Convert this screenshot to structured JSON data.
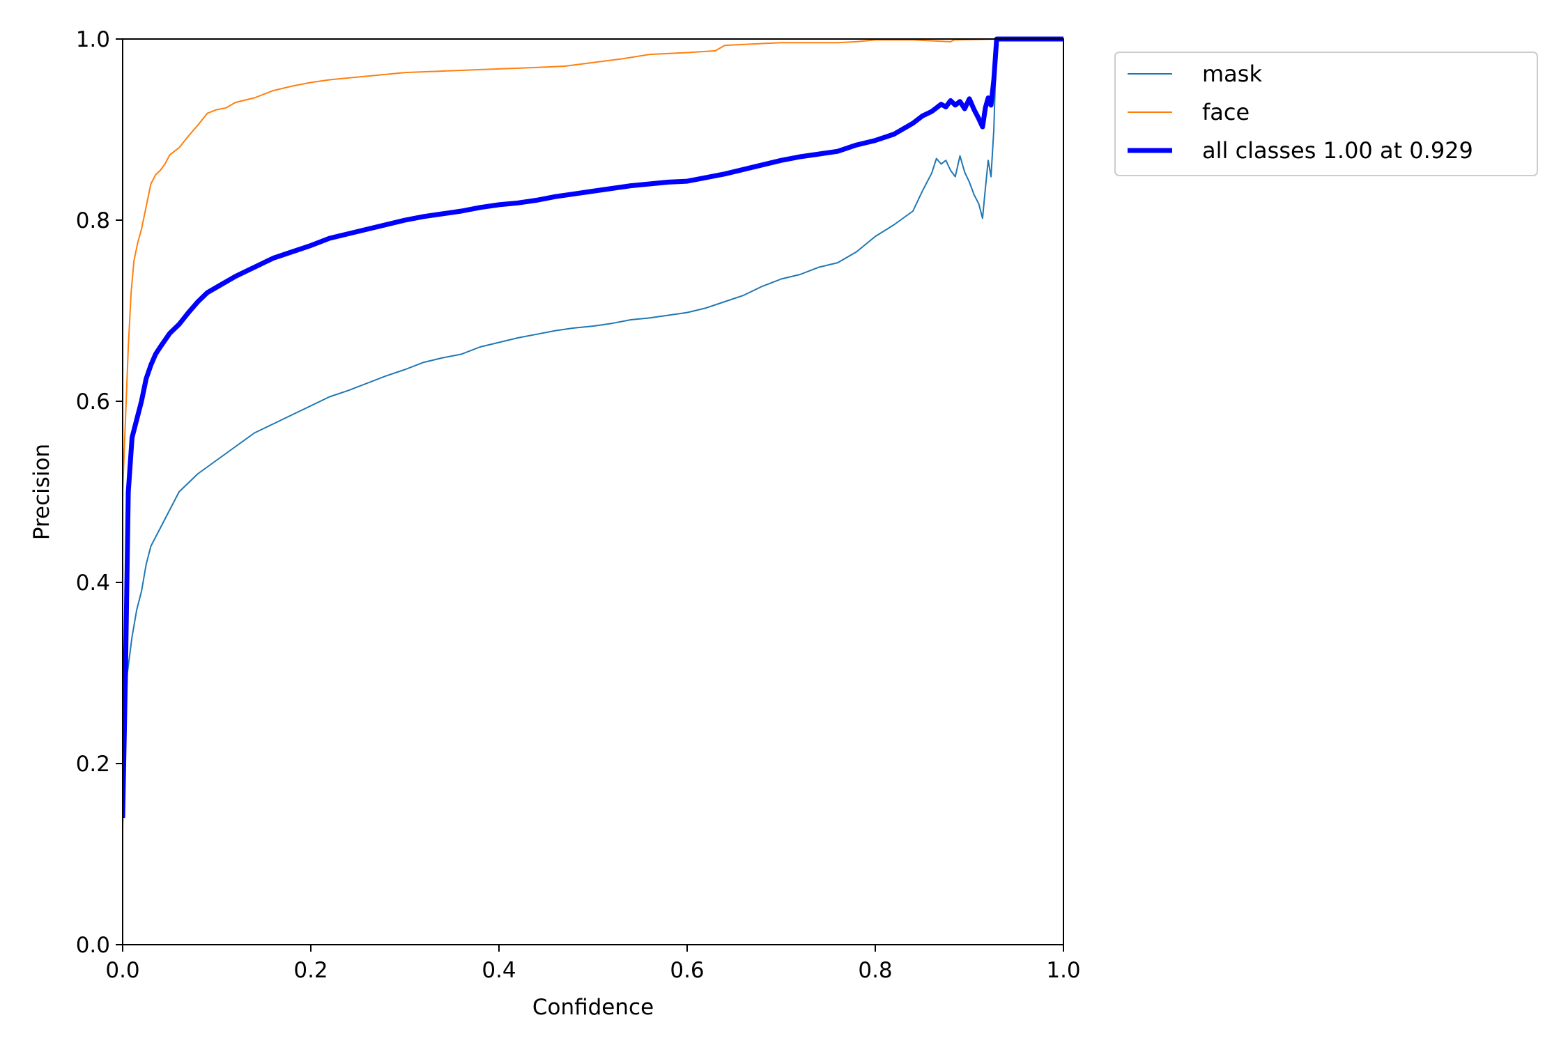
{
  "chart_data": {
    "type": "line",
    "title": "",
    "xlabel": "Confidence",
    "ylabel": "Precision",
    "xlim": [
      0.0,
      1.0
    ],
    "ylim": [
      0.0,
      1.0
    ],
    "xticks": [
      "0.0",
      "0.2",
      "0.4",
      "0.6",
      "0.8",
      "1.0"
    ],
    "yticks": [
      "0.0",
      "0.2",
      "0.4",
      "0.6",
      "0.8",
      "1.0"
    ],
    "grid": false,
    "legend_position": "outside-top-right",
    "series": [
      {
        "name": "mask",
        "color": "#1f77b4",
        "linewidth": 2,
        "points": [
          [
            0.0,
            0.13
          ],
          [
            0.003,
            0.25
          ],
          [
            0.005,
            0.3
          ],
          [
            0.01,
            0.34
          ],
          [
            0.015,
            0.37
          ],
          [
            0.02,
            0.39
          ],
          [
            0.025,
            0.42
          ],
          [
            0.03,
            0.44
          ],
          [
            0.04,
            0.46
          ],
          [
            0.05,
            0.48
          ],
          [
            0.06,
            0.5
          ],
          [
            0.07,
            0.51
          ],
          [
            0.08,
            0.52
          ],
          [
            0.1,
            0.535
          ],
          [
            0.12,
            0.55
          ],
          [
            0.14,
            0.565
          ],
          [
            0.16,
            0.575
          ],
          [
            0.18,
            0.585
          ],
          [
            0.2,
            0.595
          ],
          [
            0.22,
            0.605
          ],
          [
            0.24,
            0.612
          ],
          [
            0.26,
            0.62
          ],
          [
            0.28,
            0.628
          ],
          [
            0.3,
            0.635
          ],
          [
            0.32,
            0.643
          ],
          [
            0.34,
            0.648
          ],
          [
            0.36,
            0.652
          ],
          [
            0.38,
            0.66
          ],
          [
            0.4,
            0.665
          ],
          [
            0.42,
            0.67
          ],
          [
            0.44,
            0.674
          ],
          [
            0.46,
            0.678
          ],
          [
            0.48,
            0.681
          ],
          [
            0.5,
            0.683
          ],
          [
            0.52,
            0.686
          ],
          [
            0.54,
            0.69
          ],
          [
            0.56,
            0.692
          ],
          [
            0.58,
            0.695
          ],
          [
            0.6,
            0.698
          ],
          [
            0.62,
            0.703
          ],
          [
            0.64,
            0.71
          ],
          [
            0.66,
            0.717
          ],
          [
            0.68,
            0.727
          ],
          [
            0.7,
            0.735
          ],
          [
            0.72,
            0.74
          ],
          [
            0.74,
            0.748
          ],
          [
            0.76,
            0.753
          ],
          [
            0.78,
            0.765
          ],
          [
            0.8,
            0.782
          ],
          [
            0.82,
            0.795
          ],
          [
            0.84,
            0.81
          ],
          [
            0.85,
            0.832
          ],
          [
            0.86,
            0.852
          ],
          [
            0.865,
            0.868
          ],
          [
            0.87,
            0.862
          ],
          [
            0.875,
            0.866
          ],
          [
            0.88,
            0.855
          ],
          [
            0.885,
            0.848
          ],
          [
            0.89,
            0.871
          ],
          [
            0.895,
            0.853
          ],
          [
            0.9,
            0.842
          ],
          [
            0.905,
            0.828
          ],
          [
            0.91,
            0.818
          ],
          [
            0.914,
            0.802
          ],
          [
            0.917,
            0.835
          ],
          [
            0.92,
            0.866
          ],
          [
            0.923,
            0.848
          ],
          [
            0.926,
            0.9
          ],
          [
            0.929,
            1.0
          ],
          [
            1.0,
            1.0
          ]
        ]
      },
      {
        "name": "face",
        "color": "#ff7f0e",
        "linewidth": 2,
        "points": [
          [
            0.0,
            0.5
          ],
          [
            0.003,
            0.58
          ],
          [
            0.006,
            0.66
          ],
          [
            0.009,
            0.72
          ],
          [
            0.012,
            0.755
          ],
          [
            0.016,
            0.775
          ],
          [
            0.02,
            0.79
          ],
          [
            0.025,
            0.815
          ],
          [
            0.03,
            0.84
          ],
          [
            0.035,
            0.85
          ],
          [
            0.04,
            0.855
          ],
          [
            0.045,
            0.862
          ],
          [
            0.05,
            0.872
          ],
          [
            0.06,
            0.88
          ],
          [
            0.07,
            0.893
          ],
          [
            0.08,
            0.905
          ],
          [
            0.09,
            0.918
          ],
          [
            0.1,
            0.922
          ],
          [
            0.11,
            0.924
          ],
          [
            0.12,
            0.93
          ],
          [
            0.14,
            0.935
          ],
          [
            0.16,
            0.943
          ],
          [
            0.18,
            0.948
          ],
          [
            0.2,
            0.952
          ],
          [
            0.22,
            0.955
          ],
          [
            0.25,
            0.958
          ],
          [
            0.28,
            0.961
          ],
          [
            0.3,
            0.963
          ],
          [
            0.35,
            0.965
          ],
          [
            0.4,
            0.967
          ],
          [
            0.45,
            0.969
          ],
          [
            0.47,
            0.97
          ],
          [
            0.5,
            0.974
          ],
          [
            0.53,
            0.978
          ],
          [
            0.56,
            0.983
          ],
          [
            0.6,
            0.985
          ],
          [
            0.63,
            0.987
          ],
          [
            0.64,
            0.993
          ],
          [
            0.68,
            0.995
          ],
          [
            0.7,
            0.996
          ],
          [
            0.76,
            0.996
          ],
          [
            0.78,
            0.997
          ],
          [
            0.8,
            0.999
          ],
          [
            0.84,
            0.999
          ],
          [
            0.88,
            0.997
          ],
          [
            0.884,
            0.999
          ],
          [
            0.929,
            1.0
          ],
          [
            1.0,
            1.0
          ]
        ]
      },
      {
        "name": "all classes 1.00 at 0.929",
        "color": "#0000ff",
        "linewidth": 7,
        "points": [
          [
            0.0,
            0.14
          ],
          [
            0.003,
            0.3
          ],
          [
            0.006,
            0.5
          ],
          [
            0.01,
            0.56
          ],
          [
            0.015,
            0.58
          ],
          [
            0.02,
            0.6
          ],
          [
            0.025,
            0.625
          ],
          [
            0.03,
            0.64
          ],
          [
            0.035,
            0.652
          ],
          [
            0.04,
            0.66
          ],
          [
            0.05,
            0.675
          ],
          [
            0.06,
            0.685
          ],
          [
            0.07,
            0.698
          ],
          [
            0.08,
            0.71
          ],
          [
            0.09,
            0.72
          ],
          [
            0.1,
            0.726
          ],
          [
            0.12,
            0.738
          ],
          [
            0.14,
            0.748
          ],
          [
            0.16,
            0.758
          ],
          [
            0.18,
            0.765
          ],
          [
            0.2,
            0.772
          ],
          [
            0.22,
            0.78
          ],
          [
            0.24,
            0.785
          ],
          [
            0.26,
            0.79
          ],
          [
            0.28,
            0.795
          ],
          [
            0.3,
            0.8
          ],
          [
            0.32,
            0.804
          ],
          [
            0.34,
            0.807
          ],
          [
            0.36,
            0.81
          ],
          [
            0.38,
            0.814
          ],
          [
            0.4,
            0.817
          ],
          [
            0.42,
            0.819
          ],
          [
            0.44,
            0.822
          ],
          [
            0.46,
            0.826
          ],
          [
            0.48,
            0.829
          ],
          [
            0.5,
            0.832
          ],
          [
            0.52,
            0.835
          ],
          [
            0.54,
            0.838
          ],
          [
            0.56,
            0.84
          ],
          [
            0.58,
            0.842
          ],
          [
            0.6,
            0.843
          ],
          [
            0.62,
            0.847
          ],
          [
            0.64,
            0.851
          ],
          [
            0.66,
            0.856
          ],
          [
            0.68,
            0.861
          ],
          [
            0.7,
            0.866
          ],
          [
            0.72,
            0.87
          ],
          [
            0.74,
            0.873
          ],
          [
            0.76,
            0.876
          ],
          [
            0.78,
            0.883
          ],
          [
            0.8,
            0.888
          ],
          [
            0.82,
            0.895
          ],
          [
            0.84,
            0.907
          ],
          [
            0.85,
            0.915
          ],
          [
            0.86,
            0.92
          ],
          [
            0.87,
            0.928
          ],
          [
            0.875,
            0.925
          ],
          [
            0.88,
            0.932
          ],
          [
            0.885,
            0.927
          ],
          [
            0.89,
            0.931
          ],
          [
            0.895,
            0.923
          ],
          [
            0.9,
            0.934
          ],
          [
            0.905,
            0.922
          ],
          [
            0.91,
            0.912
          ],
          [
            0.914,
            0.903
          ],
          [
            0.917,
            0.924
          ],
          [
            0.92,
            0.935
          ],
          [
            0.923,
            0.927
          ],
          [
            0.926,
            0.955
          ],
          [
            0.929,
            1.0
          ],
          [
            1.0,
            1.0
          ]
        ]
      }
    ]
  }
}
